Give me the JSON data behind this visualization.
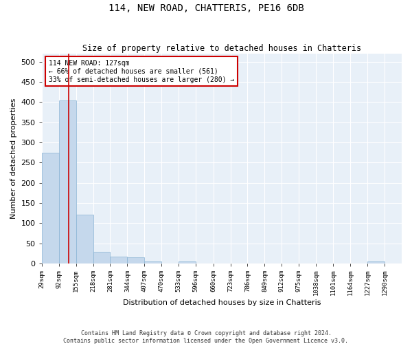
{
  "title": "114, NEW ROAD, CHATTERIS, PE16 6DB",
  "subtitle": "Size of property relative to detached houses in Chatteris",
  "xlabel": "Distribution of detached houses by size in Chatteris",
  "ylabel": "Number of detached properties",
  "footer_line1": "Contains HM Land Registry data © Crown copyright and database right 2024.",
  "footer_line2": "Contains public sector information licensed under the Open Government Licence v3.0.",
  "annotation_line1": "114 NEW ROAD: 127sqm",
  "annotation_line2": "← 66% of detached houses are smaller (561)",
  "annotation_line3": "33% of semi-detached houses are larger (280) →",
  "property_size": 127,
  "bar_color": "#c5d8ec",
  "bar_edge_color": "#8ab4d4",
  "redline_color": "#cc0000",
  "annotation_box_edgecolor": "#cc0000",
  "background_color": "#e8f0f8",
  "grid_color": "#ffffff",
  "bins": [
    29,
    92,
    155,
    218,
    281,
    344,
    407,
    470,
    533,
    596,
    660,
    723,
    786,
    849,
    912,
    975,
    1038,
    1101,
    1164,
    1227,
    1290
  ],
  "counts": [
    275,
    405,
    120,
    28,
    16,
    15,
    4,
    0,
    4,
    0,
    0,
    0,
    0,
    0,
    0,
    0,
    0,
    0,
    0,
    4,
    0
  ],
  "ylim": [
    0,
    520
  ],
  "yticks": [
    0,
    50,
    100,
    150,
    200,
    250,
    300,
    350,
    400,
    450,
    500
  ]
}
